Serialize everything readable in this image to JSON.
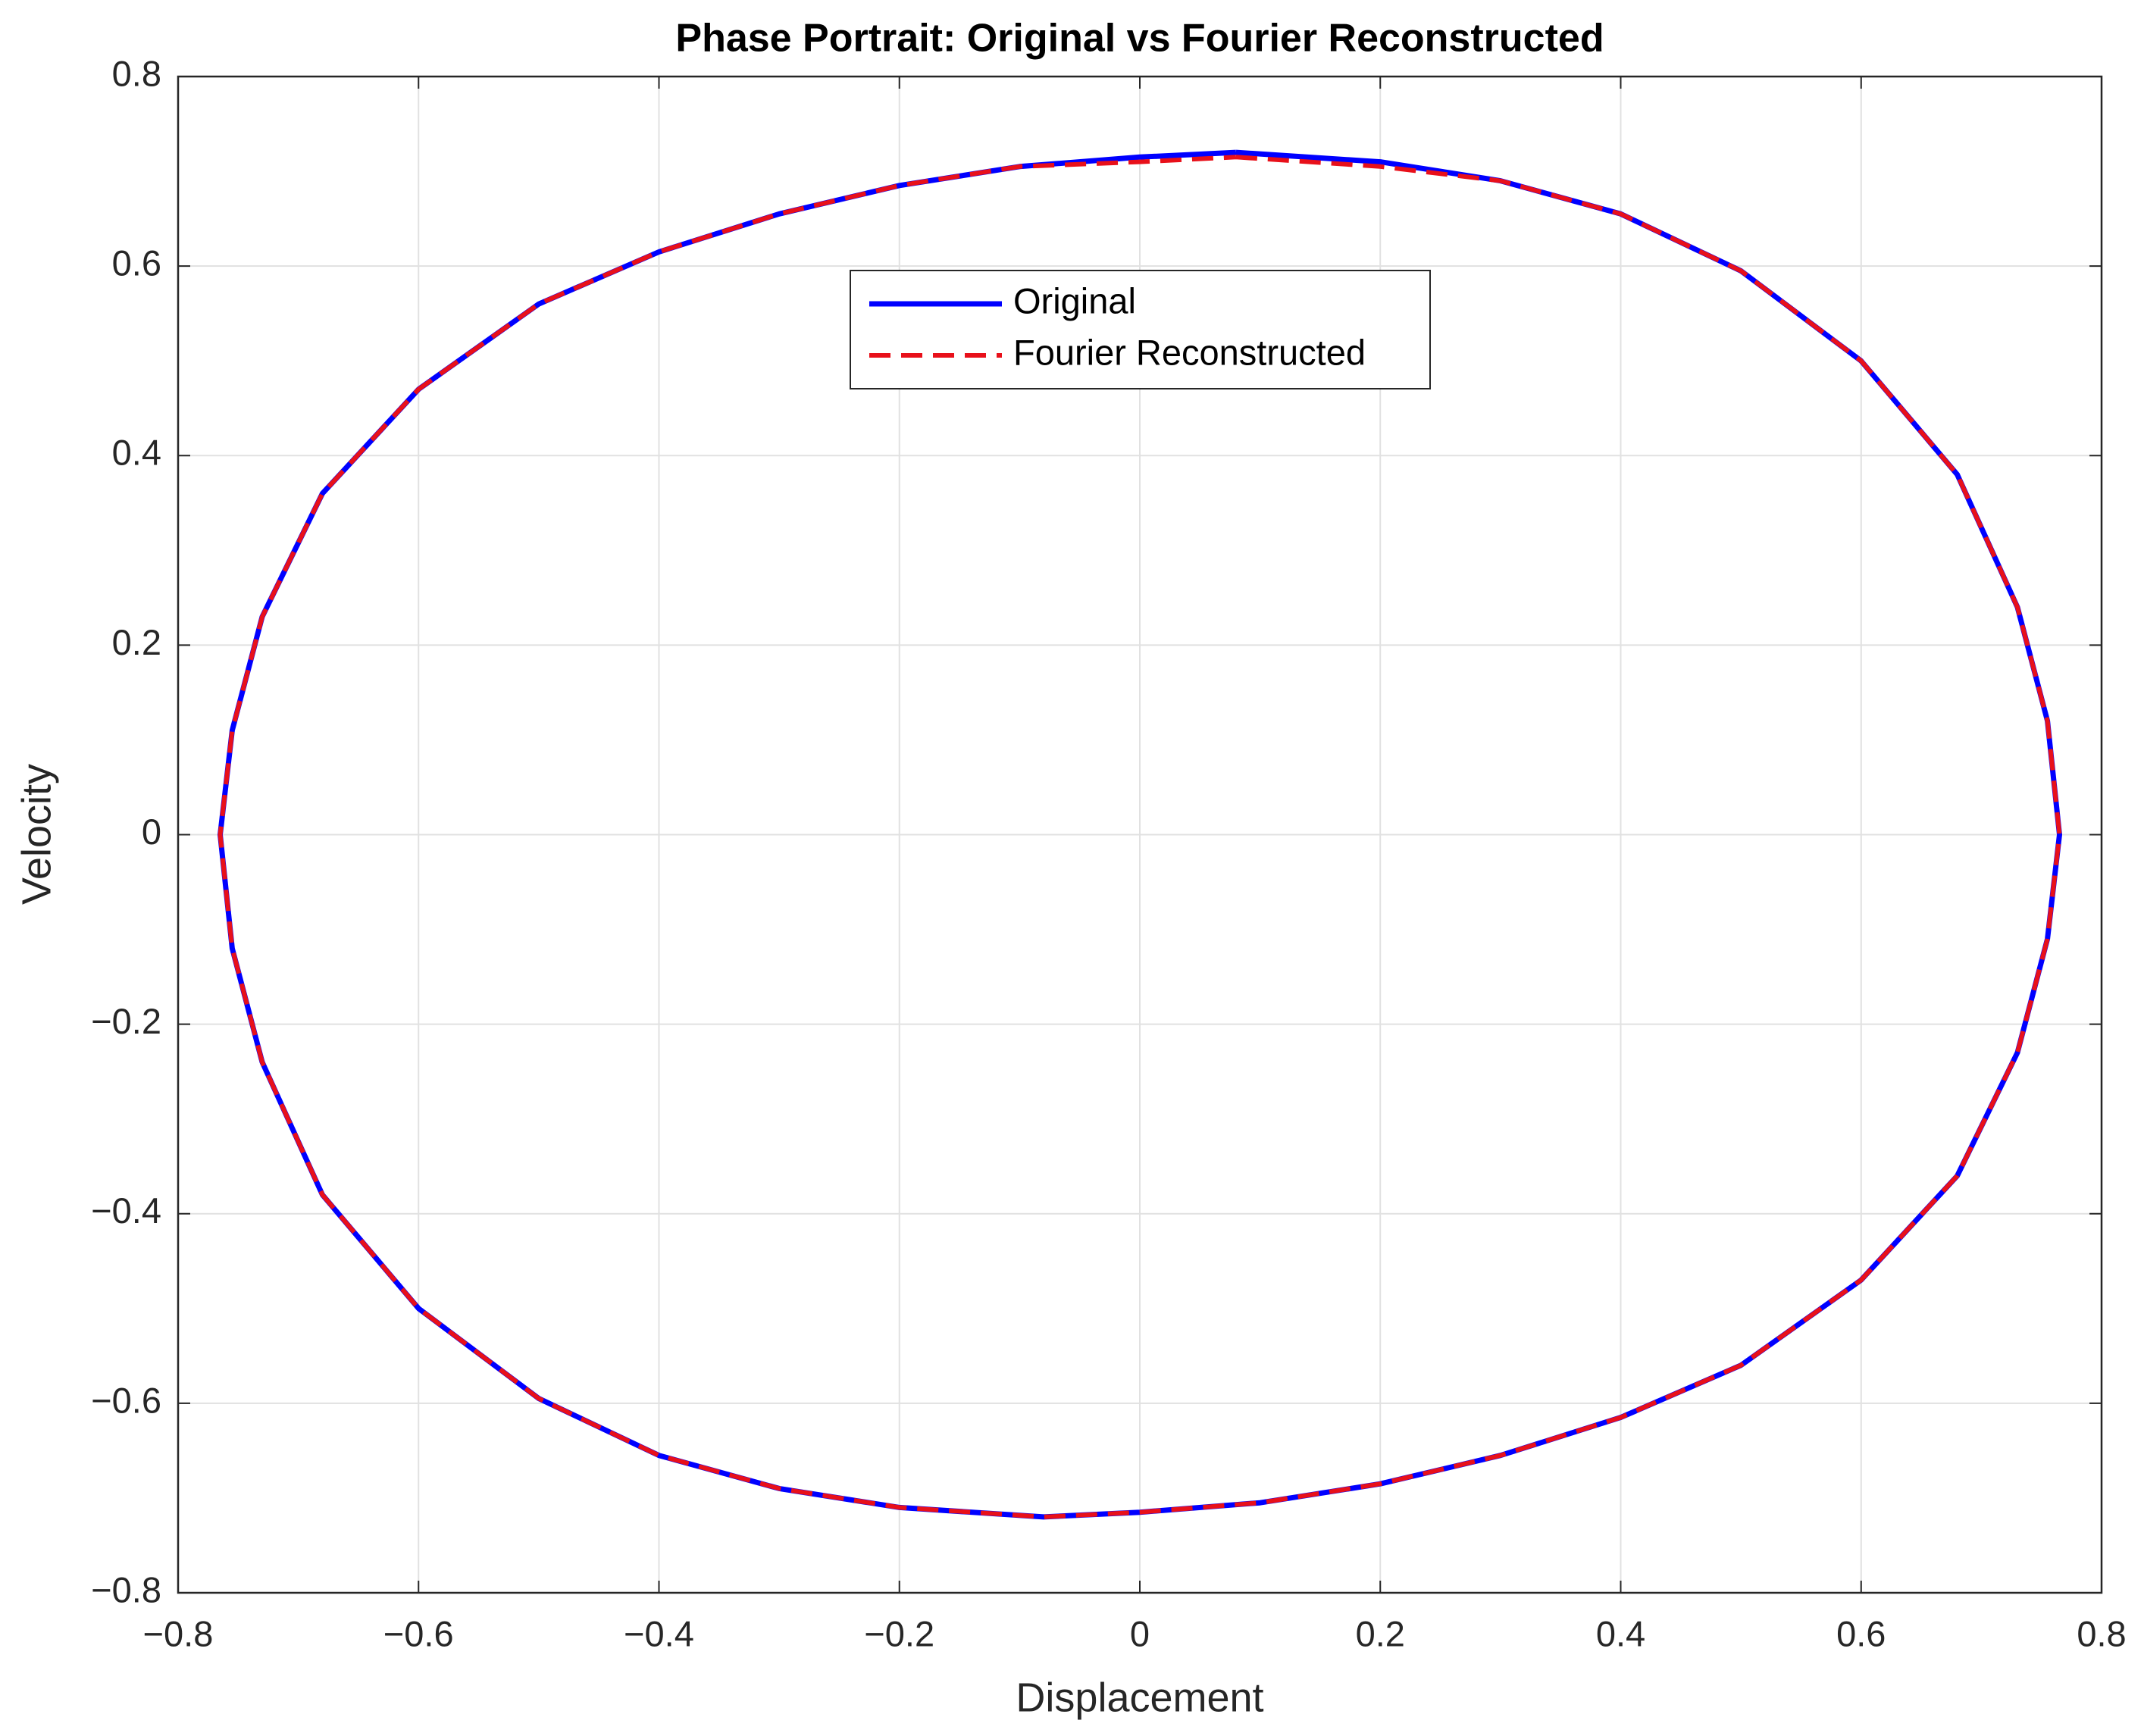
{
  "chart_data": {
    "type": "line",
    "title": "Phase Portrait: Original vs Fourier Reconstructed",
    "x_label": "Displacement",
    "y_label": "Velocity",
    "xlim": [
      -0.8,
      0.8
    ],
    "ylim": [
      -0.8,
      0.8
    ],
    "xticks": [
      {
        "value": -0.8,
        "label": "−0.8"
      },
      {
        "value": -0.6,
        "label": "−0.6"
      },
      {
        "value": -0.4,
        "label": "−0.4"
      },
      {
        "value": -0.2,
        "label": "−0.2"
      },
      0,
      0.2,
      0.4,
      0.6,
      0.8
    ],
    "yticks": [
      {
        "value": -0.8,
        "label": "−0.8"
      },
      {
        "value": -0.6,
        "label": "−0.6"
      },
      {
        "value": -0.4,
        "label": "−0.4"
      },
      {
        "value": -0.2,
        "label": "−0.2"
      },
      0,
      0.2,
      0.4,
      0.6,
      0.8
    ],
    "grid": true,
    "legend_location": "north",
    "series": [
      {
        "name": "Original",
        "color": "#0000ff",
        "dash": "solid",
        "x": [
          0.08,
          0.2,
          0.3,
          0.4,
          0.5,
          0.6,
          0.68,
          0.73,
          0.755,
          0.765,
          0.755,
          0.73,
          0.68,
          0.6,
          0.5,
          0.4,
          0.3,
          0.2,
          0.1,
          0,
          -0.08,
          -0.2,
          -0.3,
          -0.4,
          -0.5,
          -0.6,
          -0.68,
          -0.73,
          -0.755,
          -0.765,
          -0.755,
          -0.73,
          -0.68,
          -0.6,
          -0.5,
          -0.4,
          -0.3,
          -0.2,
          -0.1,
          0,
          0.08
        ],
        "values": [
          0.72,
          0.71,
          0.69,
          0.655,
          0.595,
          0.5,
          0.38,
          0.24,
          0.12,
          0,
          -0.11,
          -0.23,
          -0.36,
          -0.47,
          -0.56,
          -0.615,
          -0.655,
          -0.685,
          -0.705,
          -0.715,
          -0.72,
          -0.71,
          -0.69,
          -0.655,
          -0.595,
          -0.5,
          -0.38,
          -0.24,
          -0.12,
          0,
          0.11,
          0.23,
          0.36,
          0.47,
          0.56,
          0.615,
          0.655,
          0.685,
          0.705,
          0.715,
          0.72
        ]
      },
      {
        "name": "Fourier Reconstructed",
        "color": "#e8101a",
        "dash": "dashed",
        "x": [
          0.08,
          0.2,
          0.3,
          0.4,
          0.5,
          0.6,
          0.68,
          0.73,
          0.755,
          0.765,
          0.755,
          0.73,
          0.68,
          0.6,
          0.5,
          0.4,
          0.3,
          0.2,
          0.1,
          0,
          -0.08,
          -0.2,
          -0.3,
          -0.4,
          -0.5,
          -0.6,
          -0.68,
          -0.73,
          -0.755,
          -0.765,
          -0.755,
          -0.73,
          -0.68,
          -0.6,
          -0.5,
          -0.4,
          -0.3,
          -0.2,
          -0.1,
          0,
          0.08
        ],
        "values": [
          0.715,
          0.705,
          0.69,
          0.655,
          0.595,
          0.5,
          0.38,
          0.24,
          0.12,
          0,
          -0.11,
          -0.23,
          -0.36,
          -0.47,
          -0.56,
          -0.615,
          -0.655,
          -0.685,
          -0.705,
          -0.715,
          -0.72,
          -0.71,
          -0.69,
          -0.655,
          -0.595,
          -0.5,
          -0.38,
          -0.24,
          -0.12,
          0,
          0.11,
          0.23,
          0.36,
          0.47,
          0.56,
          0.615,
          0.655,
          0.685,
          0.705,
          0.71,
          0.715
        ]
      }
    ]
  }
}
